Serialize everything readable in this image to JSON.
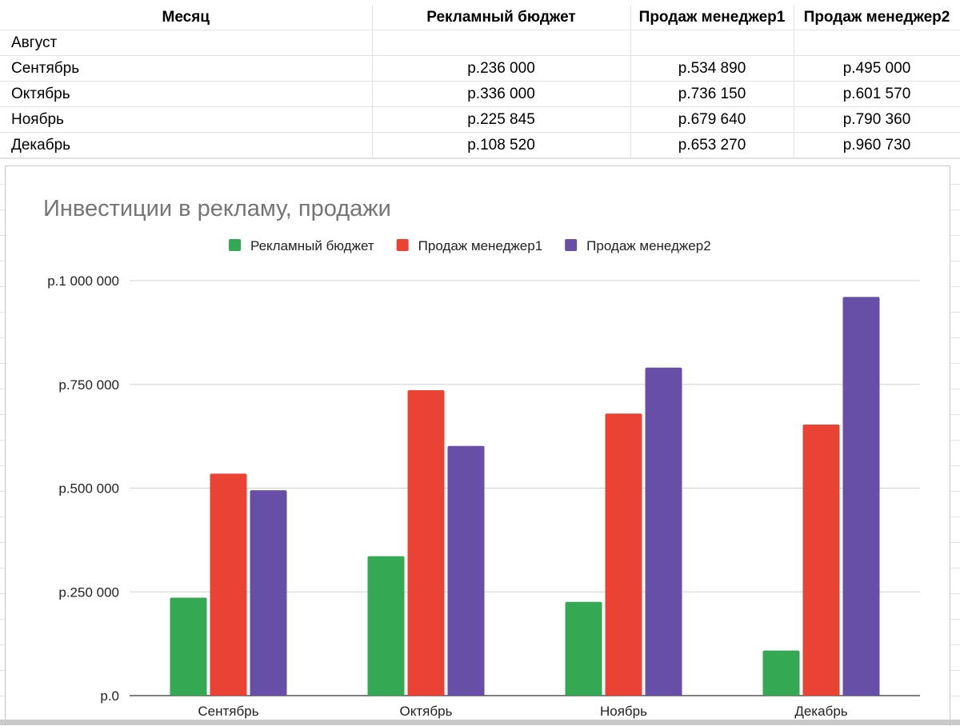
{
  "sheet": {
    "headers": [
      "Месяц",
      "Рекламный бюджет",
      "Продаж менеджер1",
      "Продаж менеджер2"
    ],
    "rows": [
      [
        "Август",
        "",
        "",
        ""
      ],
      [
        "Сентябрь",
        "р.236 000",
        "р.534 890",
        "р.495 000"
      ],
      [
        "Октябрь",
        "р.336 000",
        "р.736 150",
        "р.601 570"
      ],
      [
        "Ноябрь",
        "р.225 845",
        "р.679 640",
        "р.790 360"
      ],
      [
        "Декабрь",
        "р.108 520",
        "р.653 270",
        "р.960 730"
      ]
    ]
  },
  "chart_data": {
    "type": "bar",
    "title": "Инвестиции в рекламу, продажи",
    "categories": [
      "Сентябрь",
      "Октябрь",
      "Ноябрь",
      "Декабрь"
    ],
    "series": [
      {
        "name": "Рекламный бюджет",
        "color": "#34a853",
        "values": [
          236000,
          336000,
          225845,
          108520
        ]
      },
      {
        "name": "Продаж менеджер1",
        "color": "#ea4335",
        "values": [
          534890,
          736150,
          679640,
          653270
        ]
      },
      {
        "name": "Продаж менеджер2",
        "color": "#674ea7",
        "values": [
          495000,
          601570,
          790360,
          960730
        ]
      }
    ],
    "ylim": [
      0,
      1000000
    ],
    "yticks": [
      0,
      250000,
      500000,
      750000,
      1000000
    ],
    "ytick_labels": [
      "р.0",
      "р.250 000",
      "р.500 000",
      "р.750 000",
      "р.1 000 000"
    ],
    "xlabel": "",
    "ylabel": "",
    "legend": "top",
    "grid": true
  }
}
